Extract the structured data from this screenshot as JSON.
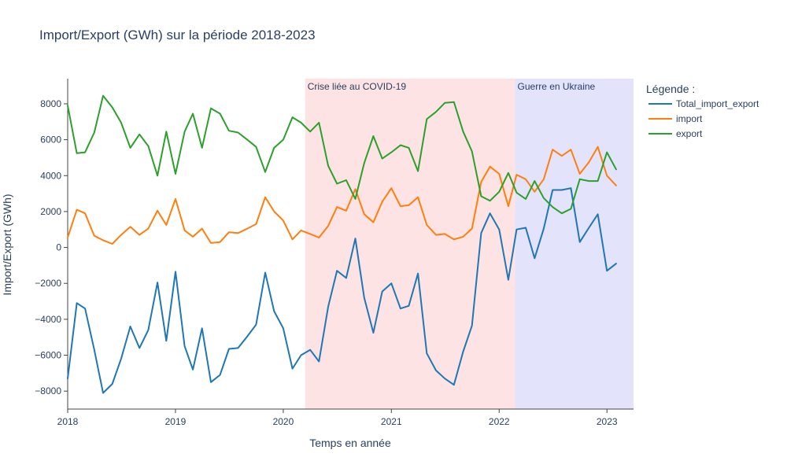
{
  "chart_data": {
    "type": "line",
    "title": "Import/Export (GWh) sur la période 2018-2023",
    "xlabel": "Temps en année",
    "ylabel": "Import/Export (GWh)",
    "xlim": [
      "2018-01",
      "2023-04"
    ],
    "ylim": [
      -9000,
      9400
    ],
    "grid": false,
    "x_ticks": [
      {
        "label": "2018",
        "value": "2018-01"
      },
      {
        "label": "2019",
        "value": "2019-01"
      },
      {
        "label": "2020",
        "value": "2020-01"
      },
      {
        "label": "2021",
        "value": "2021-01"
      },
      {
        "label": "2022",
        "value": "2022-01"
      },
      {
        "label": "2023",
        "value": "2023-01"
      }
    ],
    "y_ticks": [
      {
        "label": "−8000",
        "value": -8000
      },
      {
        "label": "−6000",
        "value": -6000
      },
      {
        "label": "−4000",
        "value": -4000
      },
      {
        "label": "−2000",
        "value": -2000
      },
      {
        "label": "0",
        "value": 0
      },
      {
        "label": "2000",
        "value": 2000
      },
      {
        "label": "4000",
        "value": 4000
      },
      {
        "label": "6000",
        "value": 6000
      },
      {
        "label": "8000",
        "value": 8000
      }
    ],
    "regions": [
      {
        "label": "Crise liée au COVID-19",
        "start": "2020-03-15",
        "end": "2022-02-24",
        "color": "#fde3e3"
      },
      {
        "label": "Guerre en Ukraine",
        "start": "2022-02-24",
        "end": "2023-04",
        "color": "#e3e3fb"
      }
    ],
    "legend": {
      "title": "Légende :",
      "position": "top-right"
    },
    "x": [
      "2018-01",
      "2018-02",
      "2018-03",
      "2018-04",
      "2018-05",
      "2018-06",
      "2018-07",
      "2018-08",
      "2018-09",
      "2018-10",
      "2018-11",
      "2018-12",
      "2019-01",
      "2019-02",
      "2019-03",
      "2019-04",
      "2019-05",
      "2019-06",
      "2019-07",
      "2019-08",
      "2019-09",
      "2019-10",
      "2019-11",
      "2019-12",
      "2020-01",
      "2020-02",
      "2020-03",
      "2020-04",
      "2020-05",
      "2020-06",
      "2020-07",
      "2020-08",
      "2020-09",
      "2020-10",
      "2020-11",
      "2020-12",
      "2021-01",
      "2021-02",
      "2021-03",
      "2021-04",
      "2021-05",
      "2021-06",
      "2021-07",
      "2021-08",
      "2021-09",
      "2021-10",
      "2021-11",
      "2021-12",
      "2022-01",
      "2022-02",
      "2022-03",
      "2022-04",
      "2022-05",
      "2022-06",
      "2022-07",
      "2022-08",
      "2022-09",
      "2022-10",
      "2022-11",
      "2022-12",
      "2023-01",
      "2023-02"
    ],
    "series": [
      {
        "name": "Total_import_export",
        "color": "#1f77b4",
        "values": [
          -7300,
          -3100,
          -3400,
          -5700,
          -8100,
          -7600,
          -6200,
          -4400,
          -5600,
          -4600,
          -1950,
          -5200,
          -1350,
          -5500,
          -6800,
          -4500,
          -7500,
          -7100,
          -5650,
          -5600,
          -4950,
          -4300,
          -1400,
          -3550,
          -4500,
          -6750,
          -6000,
          -5700,
          -6350,
          -3300,
          -1300,
          -1700,
          500,
          -2800,
          -4750,
          -2450,
          -2000,
          -3400,
          -3250,
          -1450,
          -5900,
          -6850,
          -7300,
          -7650,
          -5800,
          -4350,
          800,
          1900,
          1000,
          -1800,
          1000,
          1100,
          -600,
          1050,
          3200,
          3200,
          3300,
          300,
          1100,
          1850,
          -1300,
          -900
        ]
      },
      {
        "name": "import",
        "color": "#ff7f0e",
        "values": [
          550,
          2100,
          1900,
          650,
          400,
          200,
          700,
          1150,
          700,
          1050,
          2050,
          1250,
          2700,
          950,
          600,
          1050,
          250,
          300,
          850,
          800,
          1050,
          1300,
          2800,
          2000,
          1500,
          450,
          950,
          750,
          550,
          1200,
          2250,
          2050,
          3250,
          1850,
          1400,
          2550,
          3300,
          2300,
          2350,
          2800,
          1250,
          700,
          750,
          450,
          600,
          1050,
          3650,
          4500,
          4100,
          2300,
          4050,
          3800,
          3100,
          3800,
          5450,
          5100,
          5450,
          4100,
          4750,
          5600,
          4000,
          3450
        ]
      },
      {
        "name": "export",
        "color": "#2ca02c",
        "values": [
          7900,
          5250,
          5300,
          6400,
          8450,
          7800,
          6950,
          5550,
          6300,
          5650,
          4000,
          6450,
          4100,
          6450,
          7450,
          5550,
          7750,
          7450,
          6500,
          6400,
          6000,
          5600,
          4200,
          5550,
          6000,
          7250,
          6950,
          6450,
          6950,
          4550,
          3550,
          3750,
          2700,
          4700,
          6200,
          4950,
          5300,
          5700,
          5550,
          4250,
          7150,
          7550,
          8050,
          8100,
          6450,
          5350,
          2850,
          2600,
          3100,
          4150,
          3050,
          2700,
          3700,
          2750,
          2250,
          1900,
          2150,
          3800,
          3700,
          3700,
          5300,
          4350
        ]
      }
    ]
  }
}
